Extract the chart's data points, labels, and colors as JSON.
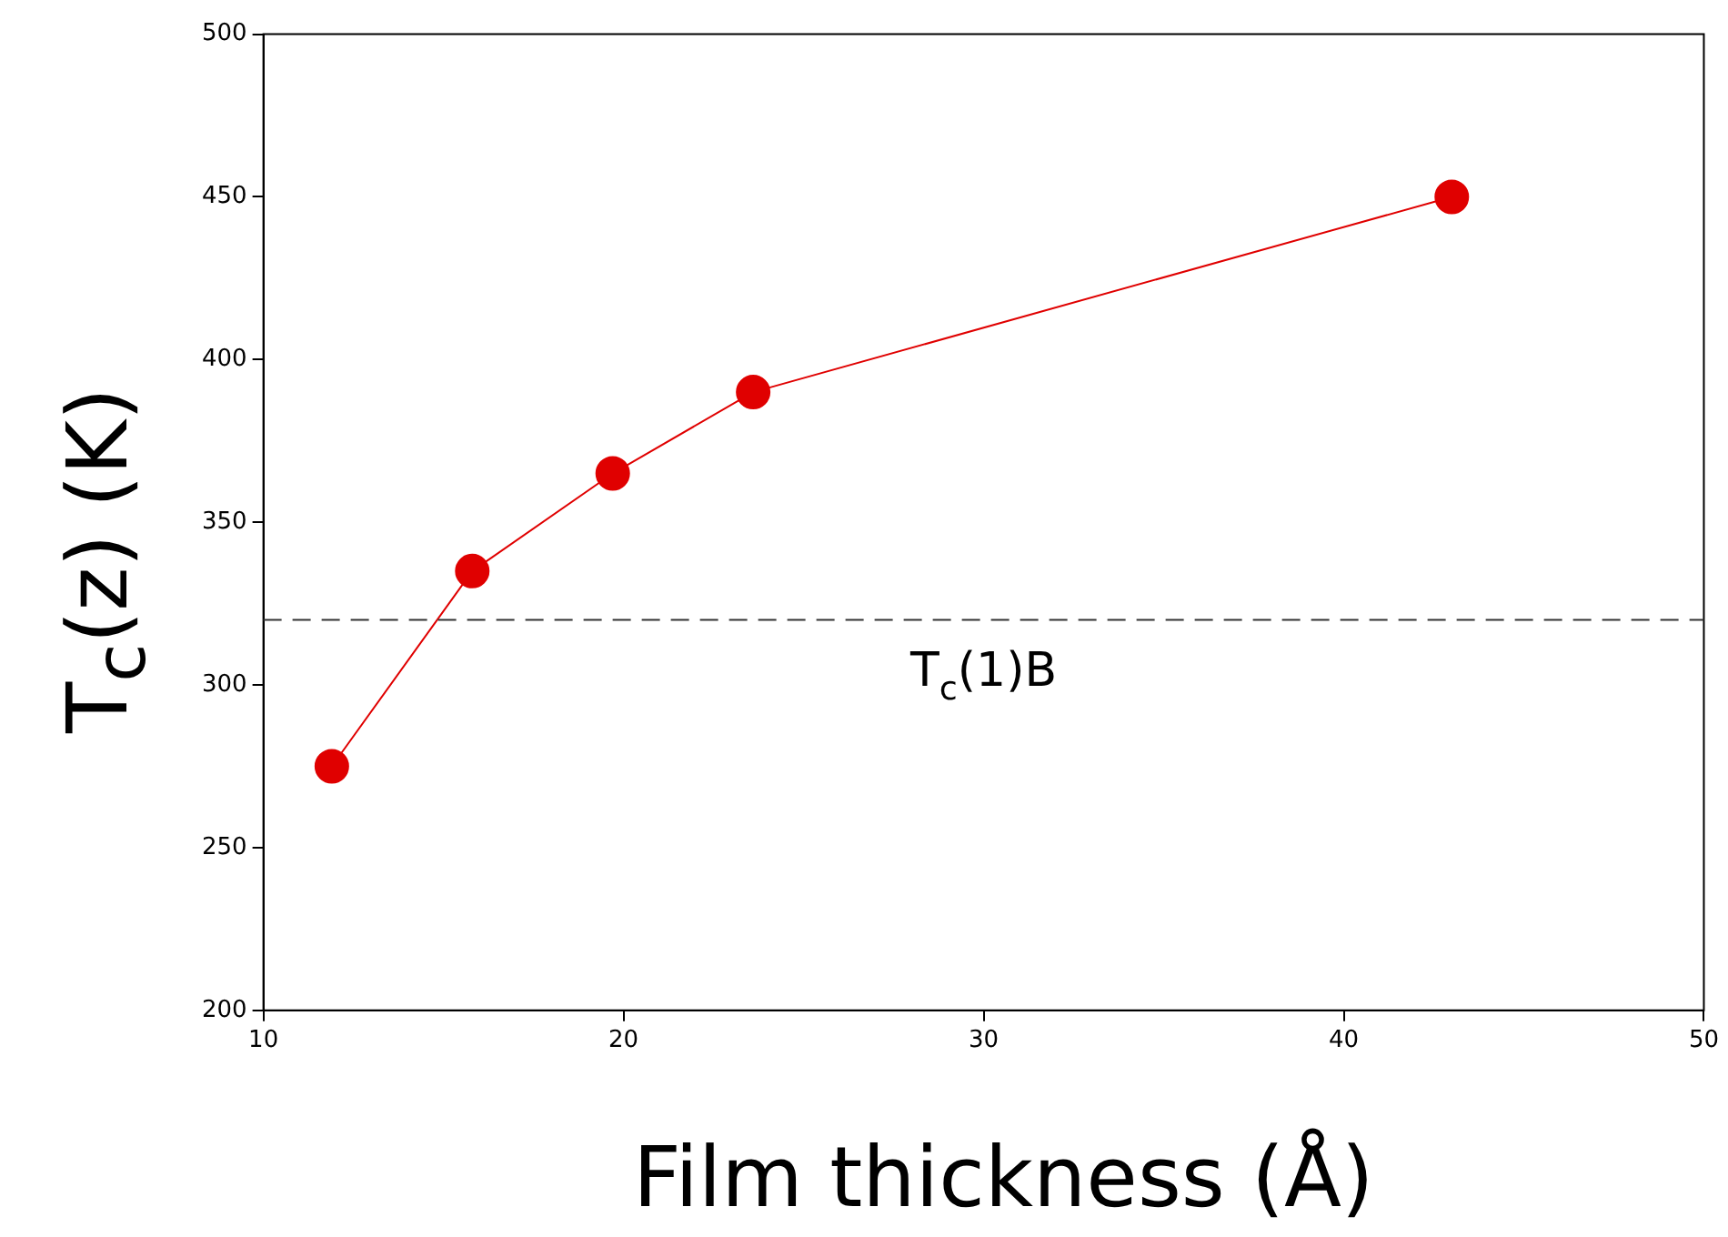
{
  "chart_data": {
    "type": "line",
    "xlabel": "Film thickness (Å)",
    "ylabel": "T$_{c}$(z) (K)",
    "x": [
      11.9,
      15.8,
      19.7,
      23.6,
      43.0
    ],
    "series": [
      {
        "color": "#e00000",
        "values": [
          275,
          335,
          365,
          390,
          450
        ]
      }
    ],
    "marker": "circle",
    "line_style": "solid",
    "xlim": [
      10,
      50
    ],
    "xticks": [
      10,
      20,
      30,
      40,
      50
    ],
    "ylim": [
      200,
      500
    ],
    "yticks": [
      200,
      250,
      300,
      350,
      400,
      450,
      500
    ],
    "ref_lines": [
      {
        "axis": "y",
        "value": 320,
        "label": "T$_{c}$(1)B",
        "color": "#333333",
        "line_style": "dashed"
      }
    ]
  }
}
